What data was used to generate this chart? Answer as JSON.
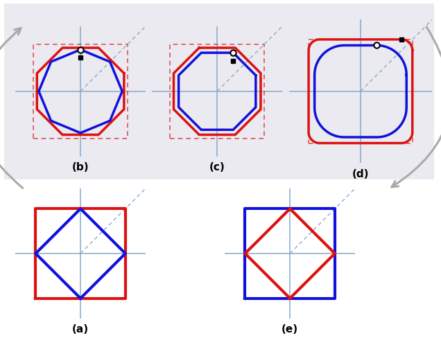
{
  "red": "#dd1111",
  "blue": "#1111dd",
  "axis_color": "#88aacc",
  "bg_face": "#eaeaf0",
  "bg_edge": "#c0c0cc",
  "arrow_color": "#aaaaaa",
  "label_fontsize": 11,
  "lw_main": 2.5,
  "lw_axis": 1.1,
  "labels": [
    "(a)",
    "(b)",
    "(c)",
    "(d)",
    "(e)"
  ]
}
